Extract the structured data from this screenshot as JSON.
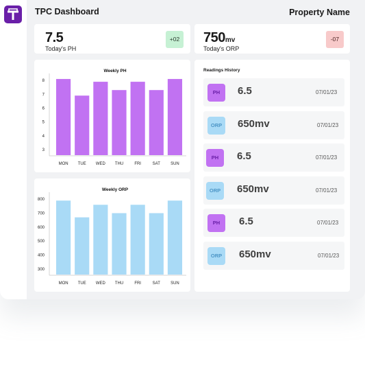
{
  "header": {
    "title": "TPC Dashboard",
    "property_name": "Property Name",
    "logo_letter": "T",
    "logo_color": "#6a1fa8"
  },
  "stats": [
    {
      "value": "7.5",
      "unit": "",
      "label": "Today's PH",
      "change": "+02",
      "change_color": "#c6f1d4"
    },
    {
      "value": "750",
      "unit": "mv",
      "label": "Today's ORP",
      "change": "-07",
      "change_color": "#f8caca"
    }
  ],
  "chart_data": [
    {
      "type": "bar",
      "title": "Weekly PH",
      "categories": [
        "MON",
        "TUE",
        "WED",
        "THU",
        "FRI",
        "SAT",
        "SUN"
      ],
      "values": [
        8.1,
        6.9,
        7.9,
        7.3,
        7.9,
        7.3,
        8.1
      ],
      "yticks": [
        3,
        4,
        5,
        6,
        7,
        8
      ],
      "ylim": [
        2.6,
        8.5
      ],
      "xlabel": "",
      "ylabel": "",
      "color": "#c172f2",
      "grid": false
    },
    {
      "type": "bar",
      "title": "Weekly ORP",
      "categories": [
        "MON",
        "TUE",
        "WED",
        "THU",
        "FRI",
        "SAT",
        "SUN"
      ],
      "values": [
        790,
        670,
        760,
        700,
        760,
        700,
        790
      ],
      "yticks": [
        300,
        400,
        500,
        600,
        700,
        800
      ],
      "ylim": [
        260,
        850
      ],
      "xlabel": "",
      "ylabel": "",
      "color": "#a9daf6",
      "grid": false
    }
  ],
  "history": {
    "title": "Readings History",
    "rows": [
      {
        "type": "PH",
        "value": "6.5",
        "date": "07/01/23"
      },
      {
        "type": "ORP",
        "value": "650mv",
        "date": "07/01/23"
      },
      {
        "type": "PH",
        "value": "6.5",
        "date": "07/01/23"
      },
      {
        "type": "ORP",
        "value": "650mv",
        "date": "07/01/23"
      },
      {
        "type": "PH",
        "value": "6.5",
        "date": "07/01/23"
      },
      {
        "type": "ORP",
        "value": "650mv",
        "date": "07/01/23"
      }
    ]
  }
}
